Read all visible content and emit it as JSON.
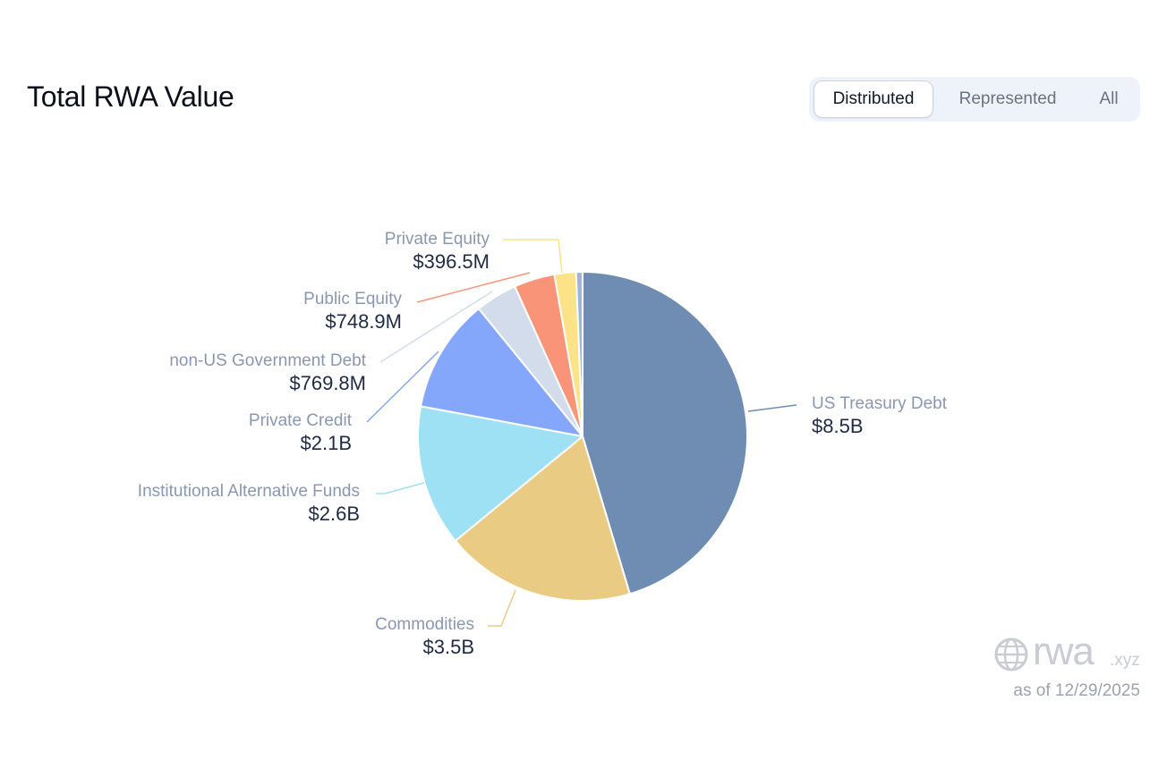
{
  "header": {
    "title": "Total RWA Value"
  },
  "toggle": {
    "options": [
      "Distributed",
      "Represented",
      "All"
    ],
    "selected": "Distributed"
  },
  "chart_data": {
    "type": "pie",
    "title": "Total RWA Value",
    "unit": "USD",
    "slices": [
      {
        "name": "US Treasury Debt",
        "value": 8.5,
        "value_label": "$8.5B",
        "color": "#6f8db3"
      },
      {
        "name": "Commodities",
        "value": 3.5,
        "value_label": "$3.5B",
        "color": "#e9cb84"
      },
      {
        "name": "Institutional Alternative Funds",
        "value": 2.6,
        "value_label": "$2.6B",
        "color": "#9ee1f5"
      },
      {
        "name": "Private Credit",
        "value": 2.1,
        "value_label": "$2.1B",
        "color": "#84a6fb"
      },
      {
        "name": "non-US Government Debt",
        "value": 0.7698,
        "value_label": "$769.8M",
        "color": "#d2dceb"
      },
      {
        "name": "Public Equity",
        "value": 0.7489,
        "value_label": "$748.9M",
        "color": "#f99478"
      },
      {
        "name": "Private Equity",
        "value": 0.3965,
        "value_label": "$396.5M",
        "color": "#fde387"
      },
      {
        "name": "",
        "value": 0.12,
        "value_label": "",
        "color": "#9db5d9"
      }
    ]
  },
  "branding": {
    "logo_text": "rwa",
    "logo_tld": ".xyz",
    "logo_icon": "globe-icon",
    "as_of": "as of 12/29/2025"
  }
}
